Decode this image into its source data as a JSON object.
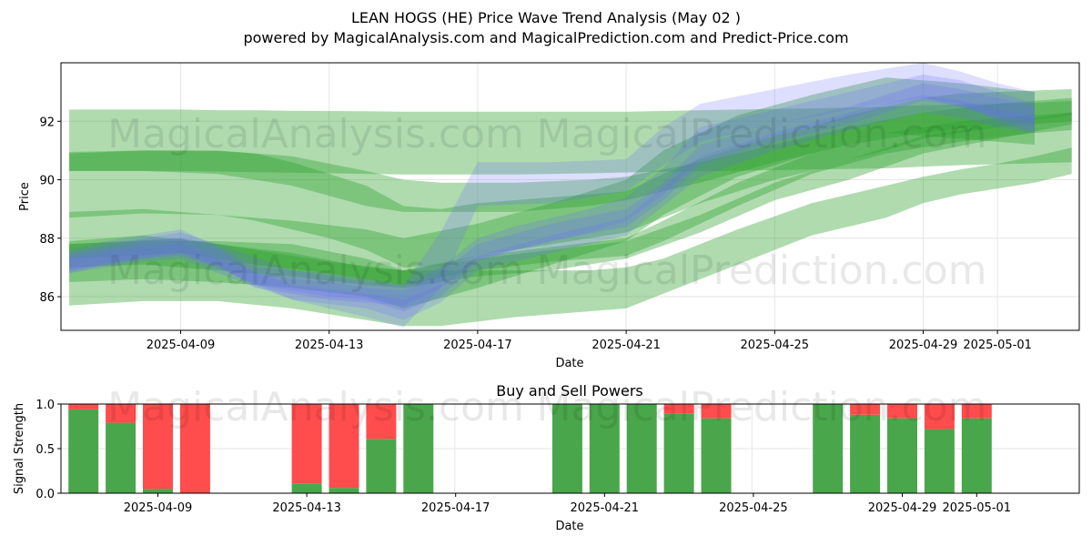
{
  "title_line1": "LEAN HOGS (HE) Price Wave Trend Analysis (May 02 )",
  "title_line2": "powered by MagicalAnalysis.com and MagicalPrediction.com and Predict-Price.com",
  "watermarks": [
    "MagicalAnalysis.com",
    "MagicalPrediction.com",
    "MagicalAnalysis.com",
    "MagicalPrediction.com",
    "MagicalAnalysis.com",
    "MagicalPrediction.com"
  ],
  "colors": {
    "green_band": "#2ca02c",
    "blue_band": "#6b6bff",
    "buy": "#4aa64a",
    "sell": "#ff4c4c",
    "grid": "#e6e6e6"
  },
  "chart_data": [
    {
      "type": "area",
      "title": "",
      "xlabel": "Date",
      "ylabel": "Price",
      "x_ticks": [
        "2025-04-09",
        "2025-04-13",
        "2025-04-17",
        "2025-04-21",
        "2025-04-25",
        "2025-04-29",
        "2025-05-01"
      ],
      "y_ticks": [
        "86",
        "88",
        "90",
        "92"
      ],
      "xlim": [
        "2025-04-05",
        "2025-05-04"
      ],
      "ylim": [
        84.85,
        94.0
      ],
      "grid": true,
      "green_bands": [
        {
          "x": [
            "2025-04-06",
            "2025-04-07",
            "2025-04-08",
            "2025-04-09",
            "2025-04-10",
            "2025-04-11",
            "2025-04-12",
            "2025-04-13",
            "2025-04-14",
            "2025-04-15",
            "2025-04-16",
            "2025-04-17",
            "2025-04-18",
            "2025-04-19",
            "2025-04-20",
            "2025-04-21",
            "2025-04-22",
            "2025-04-23",
            "2025-04-24",
            "2025-04-25",
            "2025-04-26",
            "2025-04-27",
            "2025-04-28",
            "2025-04-29",
            "2025-04-30",
            "2025-05-01",
            "2025-05-02",
            "2025-05-03"
          ],
          "upper": [
            92.4,
            92.4,
            92.4,
            92.4,
            92.38,
            92.38,
            92.36,
            92.35,
            92.34,
            92.33,
            92.33,
            92.33,
            92.33,
            92.33,
            92.33,
            92.33,
            92.35,
            92.38,
            92.4,
            92.42,
            92.44,
            92.47,
            92.5,
            92.55,
            92.58,
            92.6,
            92.63,
            92.7
          ],
          "lower": [
            90.3,
            90.3,
            90.3,
            90.3,
            90.28,
            90.26,
            90.24,
            90.22,
            90.2,
            90.18,
            90.18,
            90.18,
            90.18,
            90.2,
            90.22,
            90.25,
            90.27,
            90.29,
            90.31,
            90.33,
            90.35,
            90.37,
            90.39,
            90.45,
            90.5,
            90.53,
            90.56,
            90.6
          ]
        },
        {
          "x": [
            "2025-04-06",
            "2025-04-08",
            "2025-04-10",
            "2025-04-11",
            "2025-04-12",
            "2025-04-13",
            "2025-04-14",
            "2025-04-15",
            "2025-04-16",
            "2025-04-17",
            "2025-04-19",
            "2025-04-21",
            "2025-04-22",
            "2025-04-23",
            "2025-04-24",
            "2025-04-25",
            "2025-04-26",
            "2025-04-27",
            "2025-04-28",
            "2025-04-29",
            "2025-04-30",
            "2025-05-01",
            "2025-05-02",
            "2025-05-03"
          ],
          "upper": [
            90.95,
            91.0,
            90.98,
            90.9,
            90.6,
            90.2,
            89.8,
            89.1,
            89.0,
            89.2,
            89.4,
            89.6,
            90.2,
            90.7,
            91.1,
            91.5,
            91.8,
            92.2,
            92.5,
            92.8,
            92.95,
            93.0,
            93.05,
            93.1
          ],
          "lower": [
            88.7,
            88.85,
            88.8,
            88.6,
            88.3,
            88.0,
            87.6,
            87.0,
            87.05,
            87.4,
            87.8,
            88.2,
            88.7,
            89.2,
            89.6,
            90.0,
            90.3,
            90.7,
            91.0,
            91.4,
            91.6,
            91.8,
            91.9,
            92.0
          ]
        },
        {
          "x": [
            "2025-04-06",
            "2025-04-08",
            "2025-04-10",
            "2025-04-12",
            "2025-04-14",
            "2025-04-15",
            "2025-04-16",
            "2025-04-18",
            "2025-04-20",
            "2025-04-21",
            "2025-04-22",
            "2025-04-24",
            "2025-04-26",
            "2025-04-28",
            "2025-04-29",
            "2025-04-30",
            "2025-05-01",
            "2025-05-02",
            "2025-05-03"
          ],
          "upper": [
            87.8,
            87.9,
            87.9,
            87.8,
            87.3,
            86.9,
            86.9,
            86.9,
            86.9,
            87.0,
            87.3,
            88.3,
            89.2,
            89.8,
            90.1,
            90.35,
            90.55,
            90.8,
            91.1
          ],
          "lower": [
            85.7,
            85.85,
            85.85,
            85.6,
            85.2,
            85.0,
            85.0,
            85.3,
            85.5,
            85.6,
            86.1,
            87.1,
            88.1,
            88.7,
            89.2,
            89.5,
            89.7,
            89.9,
            90.2
          ]
        },
        {
          "x": [
            "2025-04-06",
            "2025-04-08",
            "2025-04-10",
            "2025-04-12",
            "2025-04-14",
            "2025-04-15",
            "2025-04-17",
            "2025-04-19",
            "2025-04-21",
            "2025-04-22",
            "2025-04-24",
            "2025-04-26",
            "2025-04-28",
            "2025-04-30",
            "2025-05-02"
          ],
          "upper": [
            88.9,
            89.0,
            88.8,
            88.6,
            88.3,
            88.0,
            88.5,
            89.2,
            90.0,
            91.0,
            92.2,
            92.9,
            93.5,
            93.3,
            93.0
          ],
          "lower": [
            86.5,
            86.6,
            86.5,
            86.3,
            86.0,
            85.6,
            86.3,
            87.1,
            87.9,
            88.8,
            90.1,
            90.9,
            91.6,
            91.4,
            91.2
          ]
        },
        {
          "x": [
            "2025-04-06",
            "2025-04-08",
            "2025-04-10",
            "2025-04-12",
            "2025-04-14",
            "2025-04-15",
            "2025-04-16",
            "2025-04-18",
            "2025-04-20",
            "2025-04-21",
            "2025-04-23",
            "2025-04-25",
            "2025-04-27",
            "2025-04-29",
            "2025-05-01",
            "2025-05-03"
          ],
          "upper": [
            90.9,
            91.0,
            91.0,
            90.8,
            90.3,
            90.0,
            89.9,
            89.9,
            90.0,
            90.1,
            90.6,
            91.2,
            91.8,
            92.3,
            92.6,
            92.8
          ],
          "lower": [
            90.3,
            90.3,
            90.2,
            89.8,
            89.1,
            88.9,
            88.9,
            88.9,
            89.1,
            89.3,
            89.9,
            90.6,
            91.2,
            91.6,
            91.9,
            92.2
          ]
        },
        {
          "x": [
            "2025-04-06",
            "2025-04-09",
            "2025-04-11",
            "2025-04-13",
            "2025-04-15",
            "2025-04-17",
            "2025-04-19",
            "2025-04-21",
            "2025-04-22",
            "2025-04-24",
            "2025-04-26",
            "2025-04-28",
            "2025-04-30",
            "2025-05-02",
            "2025-05-03"
          ],
          "upper": [
            87.8,
            88.0,
            87.6,
            87.2,
            86.9,
            87.4,
            87.7,
            88.0,
            88.6,
            89.9,
            90.9,
            91.6,
            92.0,
            92.2,
            92.3
          ],
          "lower": [
            87.3,
            87.5,
            87.1,
            86.8,
            86.4,
            86.9,
            87.2,
            87.4,
            87.9,
            89.1,
            90.2,
            90.9,
            91.3,
            91.6,
            91.7
          ]
        },
        {
          "x": [
            "2025-04-06",
            "2025-04-08",
            "2025-04-10",
            "2025-04-12",
            "2025-04-14",
            "2025-04-15",
            "2025-04-17",
            "2025-04-19",
            "2025-04-21",
            "2025-04-23",
            "2025-04-25",
            "2025-04-27",
            "2025-04-29",
            "2025-05-01",
            "2025-05-03"
          ],
          "upper": [
            87.9,
            88.1,
            87.8,
            87.5,
            87.0,
            86.9,
            87.3,
            87.6,
            87.9,
            88.8,
            89.9,
            90.7,
            91.5,
            91.9,
            92.3
          ],
          "lower": [
            87.0,
            87.1,
            86.9,
            86.7,
            86.4,
            86.3,
            86.7,
            86.9,
            87.3,
            88.2,
            89.3,
            90.0,
            90.9,
            91.4,
            91.9
          ]
        }
      ],
      "blue_bands": [
        {
          "x": [
            "2025-04-06",
            "2025-04-07",
            "2025-04-08",
            "2025-04-09",
            "2025-04-10",
            "2025-04-11",
            "2025-04-12",
            "2025-04-13",
            "2025-04-14",
            "2025-04-15",
            "2025-04-16",
            "2025-04-17",
            "2025-04-18",
            "2025-04-19",
            "2025-04-20",
            "2025-04-21",
            "2025-04-22",
            "2025-04-23",
            "2025-04-24",
            "2025-04-25",
            "2025-04-26",
            "2025-04-27",
            "2025-04-28",
            "2025-04-29",
            "2025-04-30",
            "2025-05-01",
            "2025-05-02"
          ],
          "upper": [
            87.6,
            87.9,
            88.1,
            88.3,
            87.7,
            87.0,
            86.9,
            86.8,
            86.6,
            86.4,
            87.0,
            88.0,
            88.4,
            88.7,
            89.0,
            89.4,
            90.4,
            91.8,
            92.1,
            92.4,
            92.7,
            93.0,
            93.3,
            93.6,
            93.4,
            93.0,
            92.6
          ],
          "lower": [
            86.8,
            87.1,
            87.3,
            87.4,
            87.0,
            86.4,
            86.2,
            86.0,
            85.9,
            85.5,
            86.0,
            87.2,
            87.6,
            87.9,
            88.2,
            88.6,
            89.5,
            90.7,
            91.1,
            91.5,
            91.8,
            92.1,
            92.5,
            92.8,
            92.6,
            92.0,
            91.6
          ]
        },
        {
          "x": [
            "2025-04-06",
            "2025-04-08",
            "2025-04-09",
            "2025-04-10",
            "2025-04-11",
            "2025-04-12",
            "2025-04-13",
            "2025-04-14",
            "2025-04-15",
            "2025-04-16",
            "2025-04-17",
            "2025-04-19",
            "2025-04-21",
            "2025-04-22",
            "2025-04-23",
            "2025-04-25",
            "2025-04-27",
            "2025-04-28",
            "2025-04-29",
            "2025-04-30",
            "2025-05-01",
            "2025-05-02"
          ],
          "upper": [
            87.4,
            87.9,
            88.0,
            87.6,
            86.8,
            86.6,
            86.5,
            86.3,
            86.2,
            86.8,
            87.8,
            88.5,
            89.0,
            89.9,
            91.2,
            91.9,
            92.5,
            92.9,
            93.3,
            93.1,
            92.8,
            92.5
          ],
          "lower": [
            86.9,
            87.4,
            87.5,
            87.1,
            86.3,
            86.1,
            85.9,
            85.8,
            85.7,
            86.3,
            87.3,
            87.9,
            88.4,
            89.3,
            90.5,
            91.3,
            91.9,
            92.3,
            92.7,
            92.5,
            92.2,
            92.0
          ]
        },
        {
          "x": [
            "2025-04-06",
            "2025-04-08",
            "2025-04-09",
            "2025-04-10",
            "2025-04-12",
            "2025-04-14",
            "2025-04-15",
            "2025-04-16",
            "2025-04-17",
            "2025-04-19",
            "2025-04-21",
            "2025-04-23",
            "2025-04-25",
            "2025-04-27",
            "2025-04-29",
            "2025-04-30",
            "2025-05-01",
            "2025-05-02"
          ],
          "upper": [
            87.3,
            87.7,
            87.8,
            87.3,
            86.4,
            86.1,
            85.9,
            86.4,
            87.4,
            88.1,
            88.7,
            90.8,
            91.6,
            92.3,
            92.9,
            92.7,
            92.4,
            92.2
          ],
          "lower": [
            86.8,
            87.2,
            87.3,
            86.8,
            85.9,
            85.6,
            85.2,
            85.8,
            86.9,
            87.5,
            88.1,
            90.1,
            91.0,
            91.7,
            92.3,
            92.1,
            91.8,
            91.6
          ]
        },
        {
          "x": [
            "2025-04-06",
            "2025-04-08",
            "2025-04-09",
            "2025-04-10",
            "2025-04-12",
            "2025-04-14",
            "2025-04-15",
            "2025-04-16",
            "2025-04-17",
            "2025-04-19",
            "2025-04-21",
            "2025-04-22",
            "2025-04-23",
            "2025-04-25",
            "2025-04-27",
            "2025-04-29",
            "2025-04-30",
            "2025-05-01",
            "2025-05-02"
          ],
          "upper": [
            87.5,
            88.0,
            88.2,
            87.8,
            86.9,
            86.5,
            86.4,
            88.2,
            90.6,
            90.6,
            90.7,
            91.8,
            92.6,
            93.1,
            93.6,
            94.0,
            93.7,
            93.3,
            93.0
          ],
          "lower": [
            86.9,
            87.3,
            87.5,
            87.0,
            85.9,
            85.3,
            84.95,
            86.3,
            89.1,
            89.2,
            89.6,
            90.5,
            91.3,
            91.9,
            92.4,
            92.8,
            92.5,
            92.1,
            91.8
          ]
        }
      ]
    },
    {
      "type": "bar",
      "title": "Buy and Sell Powers",
      "xlabel": "Date",
      "ylabel": "Signal Strength",
      "x_ticks": [
        "2025-04-09",
        "2025-04-13",
        "2025-04-17",
        "2025-04-21",
        "2025-04-25",
        "2025-04-29",
        "2025-05-01"
      ],
      "y_ticks": [
        "0.0",
        "0.5",
        "1.0"
      ],
      "ylim": [
        0,
        1
      ],
      "dates": [
        "2025-04-07",
        "2025-04-08",
        "2025-04-09",
        "2025-04-10",
        "2025-04-13",
        "2025-04-14",
        "2025-04-15",
        "2025-04-16",
        "2025-04-20",
        "2025-04-21",
        "2025-04-22",
        "2025-04-23",
        "2025-04-24",
        "2025-04-27",
        "2025-04-28",
        "2025-04-29",
        "2025-04-30",
        "2025-05-01"
      ],
      "series": [
        {
          "name": "Buy",
          "values": [
            0.94,
            0.79,
            0.05,
            0.0,
            0.11,
            0.06,
            0.61,
            1.0,
            1.0,
            1.0,
            1.0,
            0.89,
            0.84,
            1.0,
            0.88,
            0.84,
            0.72,
            0.84
          ]
        },
        {
          "name": "Sell",
          "values": [
            0.06,
            0.21,
            0.95,
            1.0,
            0.89,
            0.94,
            0.39,
            0.0,
            0.0,
            0.0,
            0.0,
            0.11,
            0.16,
            0.0,
            0.12,
            0.16,
            0.28,
            0.16
          ]
        }
      ]
    }
  ]
}
